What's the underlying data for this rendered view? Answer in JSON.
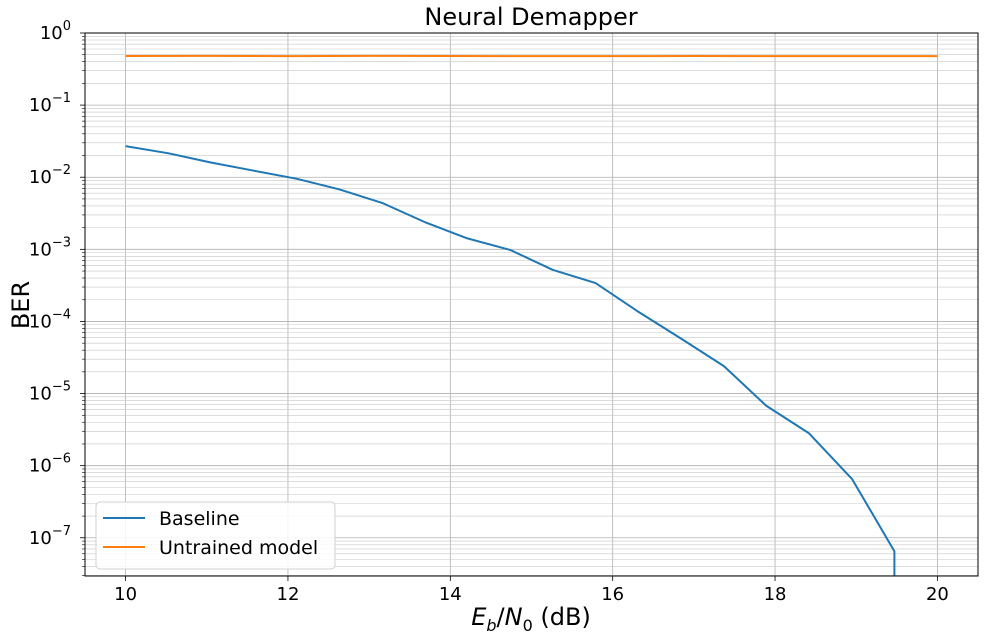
{
  "chart_data": {
    "type": "line",
    "title": "Neural Demapper",
    "xlabel": {
      "E": "E",
      "b": "b",
      "slash": "/",
      "N": "N",
      "zero": "0",
      "suffix": " (dB)"
    },
    "ylabel": "BER",
    "xlim": [
      9.5,
      20.5
    ],
    "ylim_log10": [
      -7.53,
      0
    ],
    "yscale": "log",
    "grid": "major-and-minor",
    "legend_position": "lower-left",
    "x_ticks": [
      "10",
      "12",
      "14",
      "16",
      "18",
      "20"
    ],
    "y_ticks": [
      {
        "base": "10",
        "exp": "0"
      },
      {
        "base": "10",
        "exp": "−1"
      },
      {
        "base": "10",
        "exp": "−2"
      },
      {
        "base": "10",
        "exp": "−3"
      },
      {
        "base": "10",
        "exp": "−4"
      },
      {
        "base": "10",
        "exp": "−5"
      },
      {
        "base": "10",
        "exp": "−6"
      },
      {
        "base": "10",
        "exp": "−7"
      }
    ],
    "series": [
      {
        "name": "Baseline",
        "color": "#1f77b4",
        "x": [
          10,
          10.53,
          11.05,
          11.58,
          12.11,
          12.63,
          13.16,
          13.68,
          14.21,
          14.74,
          15.26,
          15.79,
          16.32,
          16.84,
          17.37,
          17.89,
          18.42,
          18.95,
          19.47
        ],
        "y": [
          0.027,
          0.0215,
          0.016,
          0.0123,
          0.0095,
          0.0068,
          0.0044,
          0.0024,
          0.00142,
          0.00098,
          0.00052,
          0.00034,
          0.000135,
          5.8e-05,
          2.4e-05,
          6.8e-06,
          2.8e-06,
          6.5e-07,
          6.5e-08
        ]
      },
      {
        "name": "Untrained model",
        "color": "#ff7f0e",
        "x": [
          10,
          11,
          12,
          13,
          14,
          15,
          16,
          17,
          18,
          19,
          20
        ],
        "y": [
          0.48,
          0.482,
          0.479,
          0.481,
          0.48,
          0.478,
          0.479,
          0.48,
          0.479,
          0.478,
          0.479
        ]
      }
    ]
  }
}
